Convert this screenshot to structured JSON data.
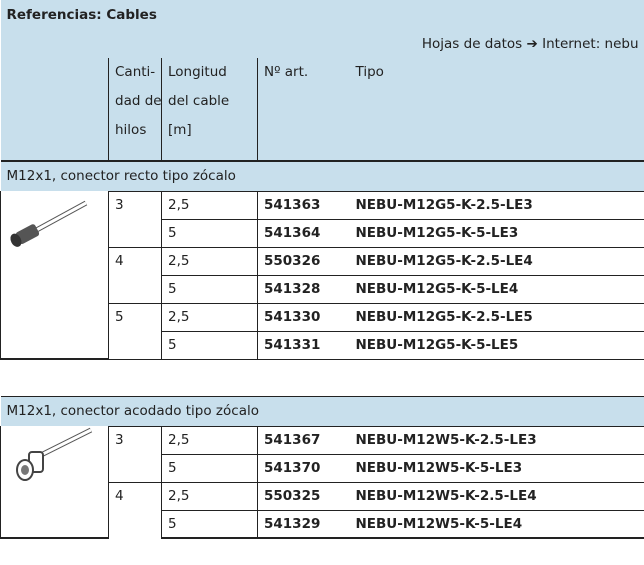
{
  "header": {
    "title": "Referencias: Cables",
    "datasheet_note": "Hojas de datos ➔ Internet: nebu"
  },
  "columns": {
    "wires": [
      "Canti-",
      "dad de",
      "hilos"
    ],
    "length": [
      "Longitud",
      "del cable",
      "[m]"
    ],
    "part_no": "Nº art.",
    "type": "Tipo"
  },
  "sections": [
    {
      "title": "M12x1, conector recto tipo zócalo",
      "groups": [
        {
          "wires": "3",
          "items": [
            {
              "length": "2,5",
              "part_no": "541363",
              "type": "NEBU-M12G5-K-2.5-LE3"
            },
            {
              "length": "5",
              "part_no": "541364",
              "type": "NEBU-M12G5-K-5-LE3"
            }
          ]
        },
        {
          "wires": "4",
          "items": [
            {
              "length": "2,5",
              "part_no": "550326",
              "type": "NEBU-M12G5-K-2.5-LE4"
            },
            {
              "length": "5",
              "part_no": "541328",
              "type": "NEBU-M12G5-K-5-LE4"
            }
          ]
        },
        {
          "wires": "5",
          "items": [
            {
              "length": "2,5",
              "part_no": "541330",
              "type": "NEBU-M12G5-K-2.5-LE5"
            },
            {
              "length": "5",
              "part_no": "541331",
              "type": "NEBU-M12G5-K-5-LE5"
            }
          ]
        }
      ]
    },
    {
      "title": "M12x1, conector acodado tipo zócalo",
      "groups": [
        {
          "wires": "3",
          "items": [
            {
              "length": "2,5",
              "part_no": "541367",
              "type": "NEBU-M12W5-K-2.5-LE3"
            },
            {
              "length": "5",
              "part_no": "541370",
              "type": "NEBU-M12W5-K-5-LE3"
            }
          ]
        },
        {
          "wires": "4",
          "items": [
            {
              "length": "2,5",
              "part_no": "550325",
              "type": "NEBU-M12W5-K-2.5-LE4"
            },
            {
              "length": "5",
              "part_no": "541329",
              "type": "NEBU-M12W5-K-5-LE4"
            }
          ]
        }
      ]
    }
  ]
}
